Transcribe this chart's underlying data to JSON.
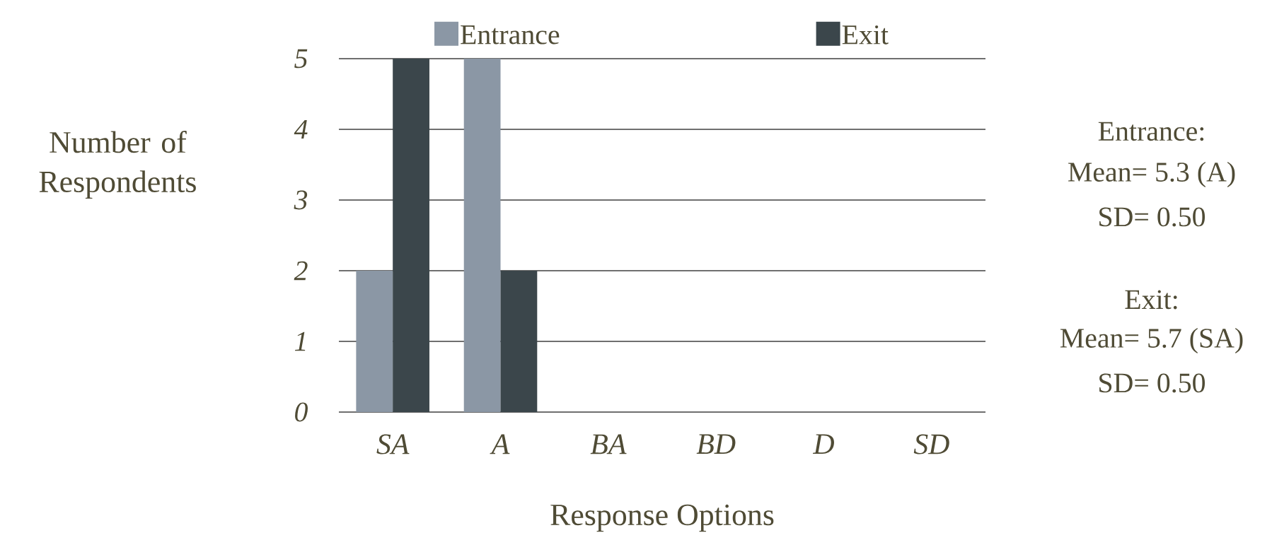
{
  "chart_data": {
    "type": "bar",
    "xlabel": "Response Options",
    "ylabel": "Number of Respondents",
    "categories": [
      "SA",
      "A",
      "BA",
      "BD",
      "D",
      "SD"
    ],
    "series": [
      {
        "name": "Entrance",
        "color": "#8b97a5",
        "values": [
          2,
          5,
          0,
          0,
          0,
          0
        ]
      },
      {
        "name": "Exit",
        "color": "#3b464b",
        "values": [
          5,
          2,
          0,
          0,
          0,
          0
        ]
      }
    ],
    "ylim": [
      0,
      5
    ],
    "yticks": [
      0,
      1,
      2,
      3,
      4,
      5
    ],
    "grid": "y",
    "legend": "top",
    "annotations": [
      "Entrance:",
      "Mean= 5.3 (A)",
      "SD= 0.50",
      "Exit:",
      "Mean= 5.7 (SA)",
      "SD= 0.50"
    ]
  }
}
